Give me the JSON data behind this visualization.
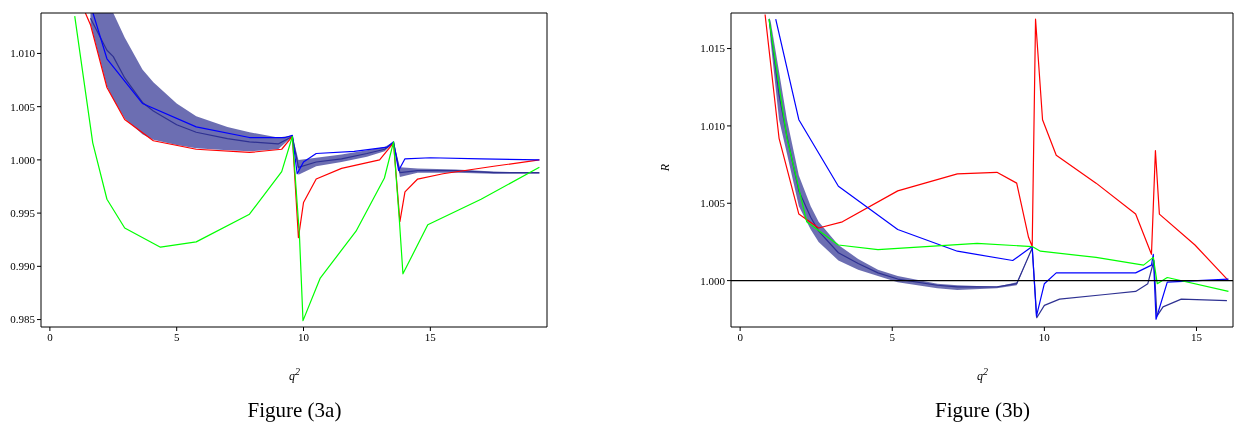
{
  "chart_data": [
    {
      "type": "line",
      "xlabel": "q$^{2}$",
      "annotations": [
        "Figure (3a)"
      ],
      "xlim": [
        -0.35,
        19.6
      ],
      "ylim": [
        0.9843,
        1.0138
      ],
      "xticks": [
        0,
        5,
        10,
        15
      ],
      "yticks": [
        {
          "value": 0.985,
          "label": "0.985"
        },
        {
          "value": 0.99,
          "label": "0.990"
        },
        {
          "value": 0.995,
          "label": "0.995"
        },
        {
          "value": 1,
          "label": "1.000"
        },
        {
          "value": 1.005,
          "label": "1.005"
        },
        {
          "value": 1.01,
          "label": "1.010"
        }
      ],
      "grid": false,
      "series": [
        {
          "color": "#2e3192",
          "x": [
            1.6,
            2.25,
            2.5,
            2.95,
            3.65,
            4.08,
            5.0,
            5.77,
            7.0,
            7.87,
            9.0,
            9.56,
            9.8,
            10.5,
            11.5,
            12.5,
            13.2,
            13.55,
            13.8,
            14.5,
            16,
            17.5,
            19.3
          ],
          "values": [
            1.0133,
            1.0103,
            1.0097,
            1.0077,
            1.0054,
            1.0046,
            1.0033,
            1.0026,
            1.002,
            1.0017,
            1.0015,
            1.0022,
            0.9993,
            0.9998,
            1.0001,
            1.0006,
            1.001,
            1.0016,
            0.9988,
            0.999,
            0.999,
            0.9988,
            0.9988
          ],
          "lower": [
            1.0128,
            1.0069,
            1.0057,
            1.0039,
            1.0024,
            1.0019,
            1.0014,
            1.0011,
            1.0009,
            1.0008,
            1.001,
            1.0022,
            0.9986,
            0.9994,
            0.9998,
            1.0003,
            1.0008,
            1.0016,
            0.9984,
            0.9988,
            0.9988,
            0.9987,
            0.9987
          ],
          "upper": [
            1.0138,
            1.0138,
            1.0138,
            1.0115,
            1.0085,
            1.0073,
            1.0053,
            1.0041,
            1.0031,
            1.0026,
            1.0021,
            1.0023,
            1.0,
            1.0002,
            1.0005,
            1.0009,
            1.0012,
            1.0017,
            0.9993,
            0.9992,
            0.9991,
            0.9989,
            0.9988
          ]
        },
        {
          "color": "#ff0000",
          "x": [
            1.4,
            1.6,
            2.25,
            2.95,
            4.08,
            5.77,
            7.87,
            9.14,
            9.56,
            9.8,
            10,
            10.5,
            11.5,
            13,
            13.55,
            13.8,
            14,
            14.5,
            15.5,
            17.5,
            19.3
          ],
          "values": [
            1.0138,
            1.0127,
            1.0068,
            1.0038,
            1.0018,
            1.001,
            1.0007,
            1.001,
            1.0022,
            0.9927,
            0.996,
            0.9982,
            0.9992,
            1.0,
            1.0016,
            0.9942,
            0.997,
            0.9982,
            0.9987,
            0.9994,
            1.0
          ]
        },
        {
          "color": "#0000ff",
          "x": [
            1.7,
            2.25,
            3.65,
            5.77,
            7.87,
            9.28,
            9.56,
            9.75,
            10,
            10.5,
            12,
            13.3,
            13.55,
            13.75,
            14,
            15,
            17,
            19.3
          ],
          "values": [
            1.0138,
            1.0095,
            1.0053,
            1.0031,
            1.0021,
            1.0021,
            1.0023,
            0.9987,
            0.9998,
            1.0006,
            1.0008,
            1.0012,
            1.0017,
            0.999,
            1.0001,
            1.0002,
            1.0001,
            1.0
          ]
        },
        {
          "color": "#00ff00",
          "x": [
            0.98,
            1.69,
            2.25,
            2.95,
            4.36,
            5.77,
            7.87,
            9.14,
            9.56,
            9.84,
            9.98,
            10.66,
            12.07,
            13.19,
            13.55,
            13.78,
            13.92,
            14.9,
            17.0,
            19.3
          ],
          "values": [
            1.0135,
            1.0016,
            0.9963,
            0.9936,
            0.9918,
            0.9923,
            0.9949,
            0.9989,
            1.0022,
            0.9929,
            0.9849,
            0.9889,
            0.9933,
            0.9983,
            1.0017,
            0.9943,
            0.9893,
            0.9939,
            0.9963,
            0.9993
          ]
        }
      ]
    },
    {
      "type": "line",
      "xlabel": "q$^{2}$",
      "ylabel": "R",
      "annotations": [
        "Figure (3b)"
      ],
      "xlim": [
        -0.3,
        16.2
      ],
      "ylim": [
        0.997,
        1.0173
      ],
      "xticks": [
        0,
        5,
        10,
        15
      ],
      "yticks": [
        {
          "value": 1,
          "label": "1.000"
        },
        {
          "value": 1.005,
          "label": "1.005"
        },
        {
          "value": 1.01,
          "label": "1.010"
        },
        {
          "value": 1.015,
          "label": "1.015"
        }
      ],
      "grid": false,
      "ref_lines": [
        {
          "axis": "y",
          "value": 1,
          "color": "#000000"
        }
      ],
      "series": [
        {
          "color": "#ff0000",
          "x": [
            0.82,
            1.28,
            1.93,
            2.58,
            3.36,
            5.18,
            7.14,
            8.44,
            9.09,
            9.48,
            9.6,
            9.71,
            9.94,
            10.39,
            11.7,
            13.0,
            13.52,
            13.65,
            13.78,
            14.95,
            16.05
          ],
          "values": [
            1.0172,
            1.0092,
            1.0043,
            1.0034,
            1.0038,
            1.0058,
            1.0069,
            1.007,
            1.0063,
            1.0028,
            1.0022,
            1.0169,
            1.0104,
            1.0081,
            1.0063,
            1.0043,
            1.0017,
            1.0084,
            1.0043,
            1.0023,
            1.0
          ]
        },
        {
          "color": "#0000ff",
          "x": [
            1.17,
            1.93,
            3.23,
            5.18,
            7.14,
            8.96,
            9.6,
            9.74,
            10.0,
            10.39,
            13.0,
            13.52,
            13.58,
            13.67,
            14.04,
            16.05
          ],
          "values": [
            1.0169,
            1.0104,
            1.0061,
            1.0033,
            1.0019,
            1.0013,
            1.0022,
            0.9977,
            0.9998,
            1.0005,
            1.0005,
            1.001,
            1.0017,
            0.9975,
            0.9999,
            1.0001
          ]
        },
        {
          "color": "#00ff00",
          "x": [
            0.95,
            1.54,
            2.19,
            3.23,
            4.53,
            7.79,
            9.6,
            9.87,
            11.7,
            13.26,
            13.58,
            13.71,
            14.04,
            16.05
          ],
          "values": [
            1.0169,
            1.0092,
            1.0038,
            1.0023,
            1.002,
            1.0024,
            1.0022,
            1.0019,
            1.0015,
            1.001,
            1.0015,
            0.9998,
            1.0002,
            0.9993
          ]
        },
        {
          "color": "#2e3192",
          "x": [
            0.95,
            1.0,
            1.28,
            1.54,
            1.93,
            2.32,
            2.58,
            3.23,
            3.88,
            4.53,
            5.18,
            6.48,
            7.14,
            8.44,
            9.09,
            9.6,
            9.75,
            10,
            10.5,
            12,
            13,
            13.4,
            13.6,
            13.7,
            13.9,
            14.5,
            16
          ],
          "values": [
            1.0169,
            1.0162,
            1.012,
            1.0093,
            1.0058,
            1.0041,
            1.0032,
            1.0018,
            1.0011,
            1.0005,
            1.0001,
            0.9997,
            0.9996,
            0.9996,
            0.9998,
            1.0021,
            0.9976,
            0.9984,
            0.9988,
            0.9991,
            0.9993,
            0.9998,
            1.0013,
            0.9977,
            0.9983,
            0.9988,
            0.9987
          ],
          "lower": [
            1.0168,
            1.0155,
            1.0104,
            1.0082,
            1.0048,
            1.0033,
            1.0025,
            1.0013,
            1.0007,
            1.0003,
            0.9999,
            0.9995,
            0.9994,
            0.9995,
            0.9997,
            1.0021,
            null,
            null,
            null,
            null,
            null,
            null,
            null,
            null,
            null,
            null,
            null
          ],
          "upper": [
            1.017,
            1.0168,
            1.0135,
            1.0104,
            1.0068,
            1.0048,
            1.0038,
            1.0023,
            1.0014,
            1.0007,
            1.0003,
            0.9998,
            0.9997,
            0.9996,
            0.9999,
            1.0021,
            null,
            null,
            null,
            null,
            null,
            null,
            null,
            null,
            null,
            null,
            null
          ]
        }
      ]
    }
  ]
}
